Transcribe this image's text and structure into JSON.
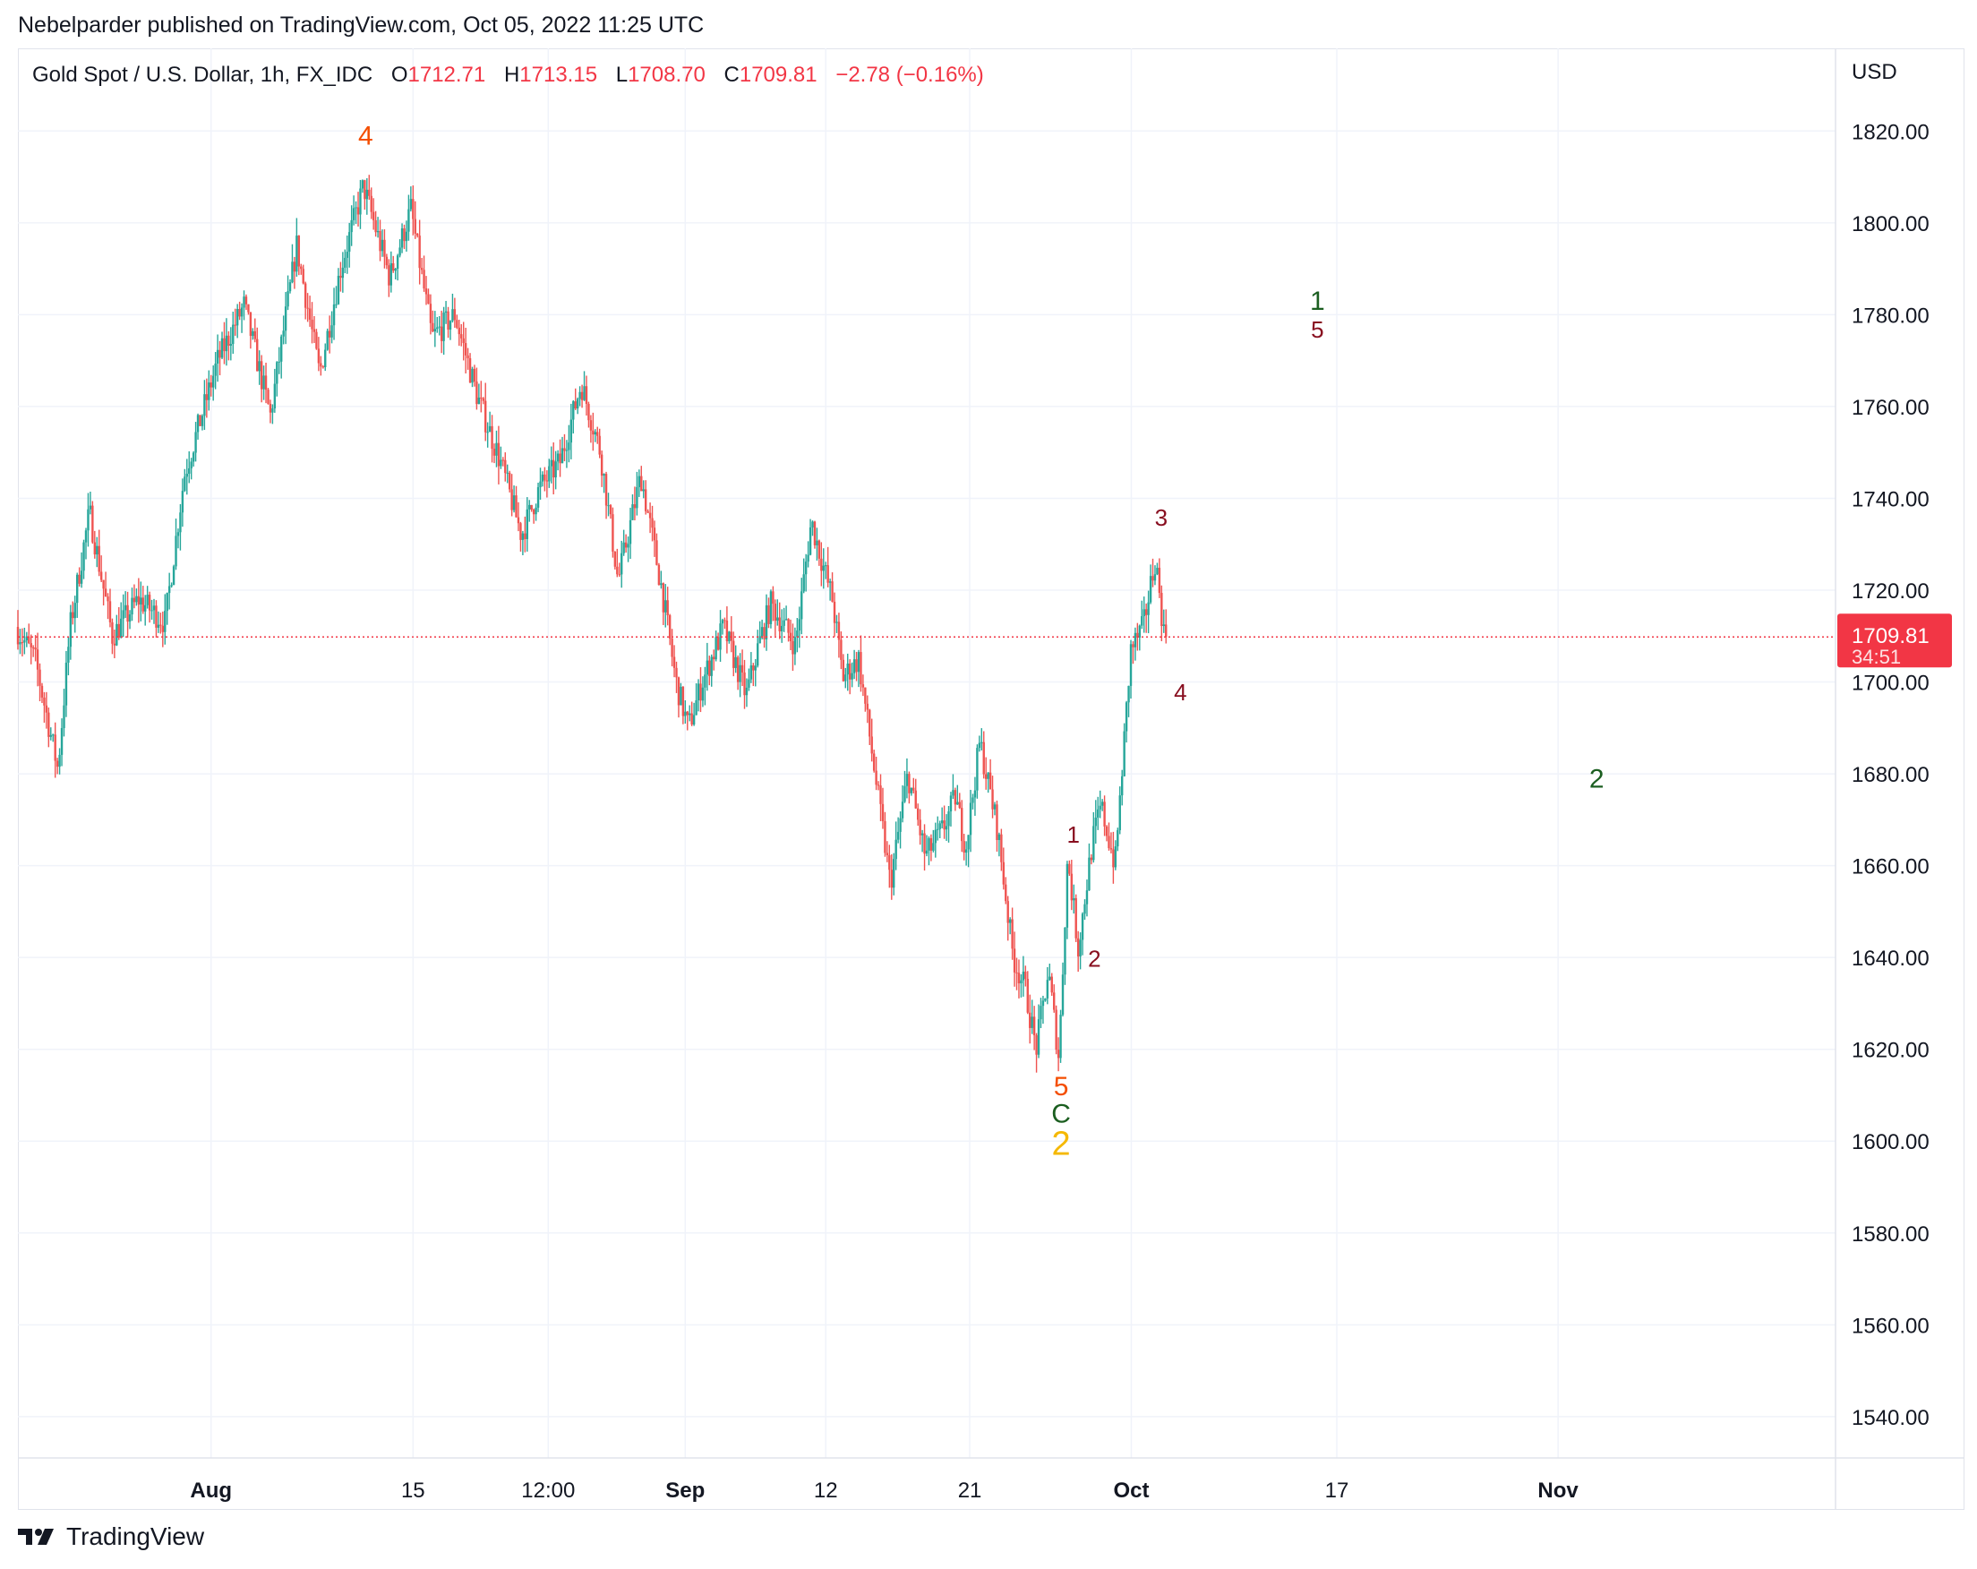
{
  "publisher": "Nebelparder published on TradingView.com, Oct 05, 2022 11:25 UTC",
  "legend": {
    "symbol": "Gold Spot / U.S. Dollar, 1h, FX_IDC",
    "o_label": "O",
    "o_value": "1712.71",
    "h_label": "H",
    "h_value": "1713.15",
    "l_label": "L",
    "l_value": "1708.70",
    "c_label": "C",
    "c_value": "1709.81",
    "change": "−2.78 (−0.16%)"
  },
  "footer": {
    "brand": "TradingView"
  },
  "colors": {
    "up": "#26a69a",
    "down": "#ef5350",
    "grid": "#f0f3fa",
    "price_line": "#f23645",
    "price_label_bg": "#f23645",
    "wave_orange": "#f44e00",
    "wave_darkred": "#880e1f",
    "wave_green": "#1b5e20",
    "wave_yellow": "#f5b800"
  },
  "chart_data": {
    "type": "candlestick",
    "symbol": "Gold Spot / U.S. Dollar",
    "interval": "1h",
    "currency": "USD",
    "y_ticks": [
      "1540.00",
      "1560.00",
      "1580.00",
      "1600.00",
      "1620.00",
      "1640.00",
      "1660.00",
      "1680.00",
      "1700.00",
      "1720.00",
      "1740.00",
      "1760.00",
      "1780.00",
      "1800.00",
      "1820.00"
    ],
    "ylim": [
      1531,
      1838
    ],
    "x_range_days": [
      -4.0,
      99.5
    ],
    "x_ticks": [
      {
        "label": "Aug",
        "day": 7,
        "bold": true
      },
      {
        "label": "15",
        "day": 18.5,
        "bold": false
      },
      {
        "label": "12:00",
        "day": 26.2,
        "bold": false
      },
      {
        "label": "Sep",
        "day": 34.0,
        "bold": true
      },
      {
        "label": "12",
        "day": 42.0,
        "bold": false
      },
      {
        "label": "21",
        "day": 50.2,
        "bold": false
      },
      {
        "label": "Oct",
        "day": 59.4,
        "bold": true
      },
      {
        "label": "17",
        "day": 71.1,
        "bold": false
      },
      {
        "label": "Nov",
        "day": 83.7,
        "bold": true
      }
    ],
    "price_path": [
      [
        -4.0,
        1712
      ],
      [
        -2.9,
        1705
      ],
      [
        -1.6,
        1681
      ],
      [
        -0.9,
        1712
      ],
      [
        0.2,
        1737
      ],
      [
        1.5,
        1710
      ],
      [
        3.0,
        1718
      ],
      [
        4.5,
        1713
      ],
      [
        5.6,
        1745
      ],
      [
        7.5,
        1770
      ],
      [
        9.0,
        1782
      ],
      [
        10.5,
        1758
      ],
      [
        12.0,
        1795
      ],
      [
        13.3,
        1767
      ],
      [
        14.5,
        1790
      ],
      [
        15.8,
        1808
      ],
      [
        17.3,
        1788
      ],
      [
        18.5,
        1803
      ],
      [
        19.7,
        1775
      ],
      [
        21.0,
        1780
      ],
      [
        22.3,
        1762
      ],
      [
        23.6,
        1748
      ],
      [
        24.8,
        1732
      ],
      [
        25.8,
        1742
      ],
      [
        27.0,
        1748
      ],
      [
        28.2,
        1765
      ],
      [
        29.3,
        1750
      ],
      [
        30.3,
        1722
      ],
      [
        31.6,
        1745
      ],
      [
        32.8,
        1720
      ],
      [
        33.6,
        1700
      ],
      [
        34.3,
        1690
      ],
      [
        35.1,
        1700
      ],
      [
        36.3,
        1712
      ],
      [
        37.6,
        1697
      ],
      [
        38.3,
        1708
      ],
      [
        39.0,
        1717
      ],
      [
        40.4,
        1708
      ],
      [
        41.3,
        1735
      ],
      [
        42.5,
        1718
      ],
      [
        43.1,
        1701
      ],
      [
        44.0,
        1705
      ],
      [
        45.0,
        1678
      ],
      [
        45.8,
        1656
      ],
      [
        46.8,
        1680
      ],
      [
        47.8,
        1662
      ],
      [
        48.8,
        1668
      ],
      [
        49.5,
        1675
      ],
      [
        50.1,
        1664
      ],
      [
        50.9,
        1687
      ],
      [
        51.9,
        1668
      ],
      [
        52.8,
        1640
      ],
      [
        53.5,
        1633
      ],
      [
        54.1,
        1620
      ],
      [
        54.8,
        1637
      ],
      [
        55.4,
        1618
      ],
      [
        55.9,
        1662
      ],
      [
        56.5,
        1642
      ],
      [
        57.3,
        1665
      ],
      [
        57.8,
        1673
      ],
      [
        58.6,
        1660
      ],
      [
        59.5,
        1707
      ],
      [
        60.2,
        1712
      ],
      [
        60.9,
        1727
      ],
      [
        61.4,
        1709.81
      ]
    ],
    "current_price": "1709.81",
    "countdown": "34:51",
    "annotations": [
      {
        "text": "4",
        "day": 15.8,
        "price": 1817,
        "color": "orange",
        "size": 30
      },
      {
        "text": "1",
        "day": 70.0,
        "price": 1781,
        "color": "green",
        "size": 30
      },
      {
        "text": "5",
        "day": 70.0,
        "price": 1775,
        "color": "darkred",
        "size": 26
      },
      {
        "text": "3",
        "day": 61.1,
        "price": 1734,
        "color": "darkred",
        "size": 26
      },
      {
        "text": "4",
        "day": 62.2,
        "price": 1696,
        "color": "darkred",
        "size": 26
      },
      {
        "text": "2",
        "day": 85.9,
        "price": 1677,
        "color": "green",
        "size": 30
      },
      {
        "text": "1",
        "day": 56.1,
        "price": 1665,
        "color": "darkred",
        "size": 26
      },
      {
        "text": "2",
        "day": 57.3,
        "price": 1638,
        "color": "darkred",
        "size": 26
      },
      {
        "text": "5",
        "day": 55.4,
        "price": 1610,
        "color": "orange",
        "size": 30
      },
      {
        "text": "C",
        "day": 55.4,
        "price": 1604,
        "color": "green",
        "size": 30
      },
      {
        "text": "2",
        "day": 55.4,
        "price": 1597,
        "color": "yellow",
        "size": 38
      }
    ]
  }
}
